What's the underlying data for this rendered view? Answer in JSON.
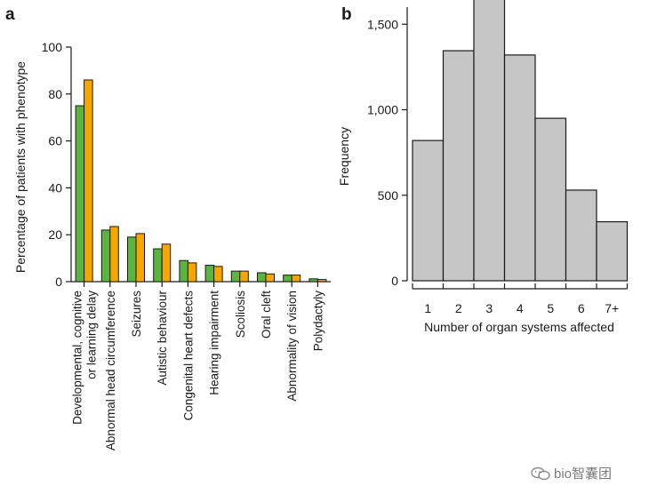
{
  "chart_data": [
    {
      "type": "bar",
      "panel_label": "a",
      "ylabel": "Percentage of patients with phenotype",
      "ylim": [
        0,
        100
      ],
      "yticks": [
        0,
        20,
        40,
        60,
        80,
        100
      ],
      "categories": [
        [
          "Developmental, cognitive",
          "or learning delay"
        ],
        [
          "Abnormal head circumference"
        ],
        [
          "Seizures"
        ],
        [
          "Autistic behaviour"
        ],
        [
          "Congenital heart defects"
        ],
        [
          "Hearing impairment"
        ],
        [
          "Scoliosis"
        ],
        [
          "Oral cleft"
        ],
        [
          "Abnormality of vision"
        ],
        [
          "Polydactyly"
        ]
      ],
      "series": [
        {
          "color": "#5bb43f",
          "values": [
            75,
            22,
            19,
            14,
            9,
            7,
            4.5,
            3.8,
            2.8,
            1.2
          ]
        },
        {
          "color": "#f7a600",
          "values": [
            86,
            23.5,
            20.5,
            16,
            8,
            6.5,
            4.5,
            3.3,
            2.8,
            0.9
          ]
        }
      ],
      "grid": false,
      "legend": "none"
    },
    {
      "type": "bar",
      "panel_label": "b",
      "xlabel": "Number of organ systems affected",
      "ylabel": "Frequency",
      "ylim": [
        0,
        1600
      ],
      "yticks": [
        0,
        500,
        1000,
        1500
      ],
      "ytick_labels": [
        "0",
        "500",
        "1,000",
        "1,500"
      ],
      "categories": [
        "1",
        "2",
        "3",
        "4",
        "5",
        "6",
        "7+"
      ],
      "values": [
        820,
        1345,
        1655,
        1320,
        950,
        530,
        345
      ],
      "bar_color": "#c6c6c6",
      "grid": false,
      "legend": "none"
    }
  ],
  "watermark": {
    "text": "bio智囊团",
    "icon": "wechat-icon"
  }
}
